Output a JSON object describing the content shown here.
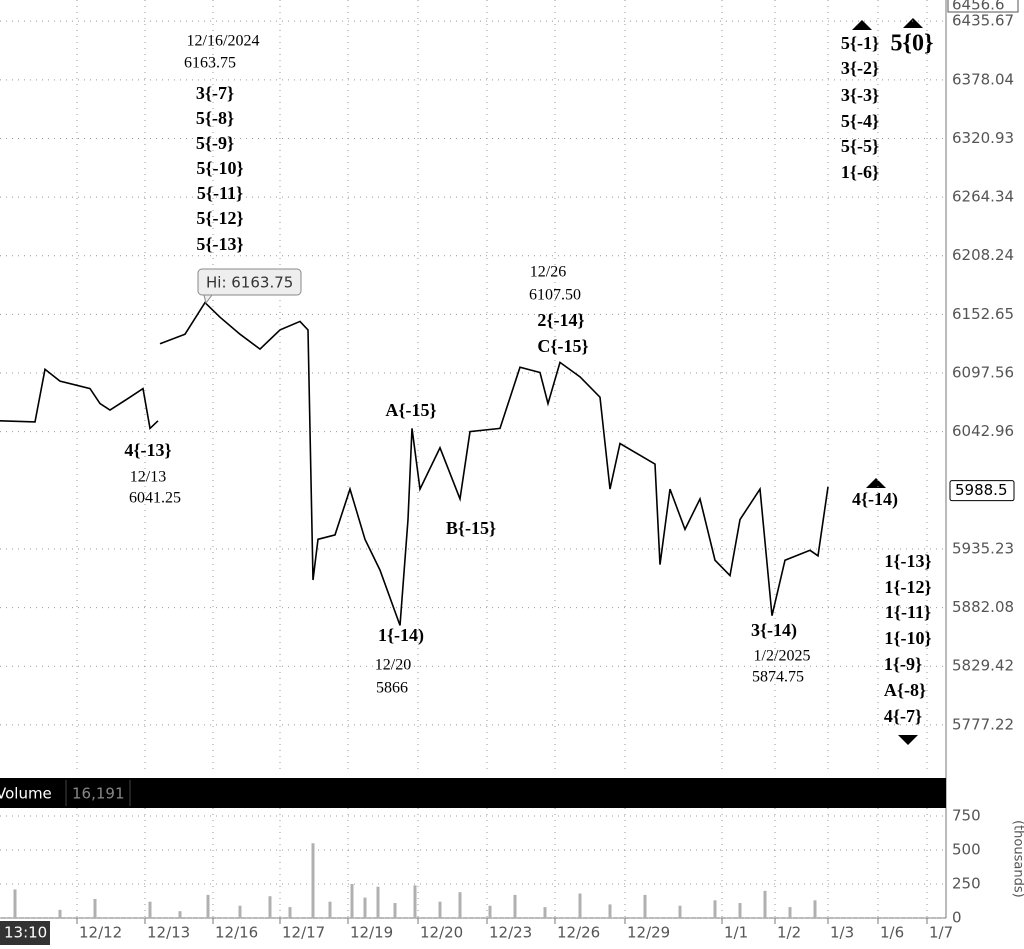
{
  "chart_data": [
    {
      "type": "line",
      "ylim": [
        5735.6,
        6456.6
      ],
      "log_scale": true,
      "yticks": [
        6435.67,
        6378.04,
        6320.93,
        6264.34,
        6208.24,
        6152.65,
        6097.56,
        6042.96,
        5935.23,
        5882.08,
        5829.42,
        5777.22
      ],
      "xlim": [
        0,
        946
      ],
      "xticks": [
        {
          "value": 77,
          "label": "12/12"
        },
        {
          "value": 145,
          "label": "12/13"
        },
        {
          "value": 213,
          "label": "12/16"
        },
        {
          "value": 280,
          "label": "12/17"
        },
        {
          "value": 348,
          "label": "12/19"
        },
        {
          "value": 418,
          "label": "12/20"
        },
        {
          "value": 487,
          "label": "12/23"
        },
        {
          "value": 555,
          "label": "12/26"
        },
        {
          "value": 625,
          "label": "12/29"
        },
        {
          "value": 722,
          "label": "1/1"
        },
        {
          "value": 775,
          "label": "1/2"
        },
        {
          "value": 828,
          "label": "1/3"
        },
        {
          "value": 878,
          "label": "1/6"
        },
        {
          "value": 927,
          "label": "1/7"
        }
      ],
      "grid": true,
      "last_price": 5988.5,
      "cursor_time": "13:10",
      "hi_label": "Hi: 6163.75",
      "series": [
        {
          "color": "#000000",
          "x": [
            0,
            35,
            45,
            60,
            90,
            100,
            110,
            130,
            143,
            150,
            158,
            159,
            160,
            185,
            205,
            220,
            240,
            260,
            280,
            300,
            308,
            313,
            318,
            335,
            350,
            365,
            380,
            400,
            408,
            412,
            420,
            440,
            460,
            470,
            500,
            520,
            540,
            548,
            560,
            580,
            600,
            610,
            620,
            655,
            660,
            670,
            685,
            700,
            715,
            730,
            740,
            760,
            772,
            785,
            810,
            818,
            828
          ],
          "values": [
            6053,
            6052,
            6101,
            6090,
            6083,
            6069,
            6063,
            6075,
            6083,
            6046,
            6053,
            null,
            6125,
            6134,
            6163.75,
            6150,
            6134,
            6120,
            6138,
            6146,
            6138,
            5907,
            5944,
            5948,
            5990,
            5944,
            5916,
            5866,
            5962,
            6046,
            5990,
            6028,
            5981,
            6043,
            6046,
            6103,
            6098,
            6069,
            6107.5,
            6094,
            6075,
            5990,
            6032,
            6013,
            5921,
            5990,
            5953,
            5981,
            5925,
            5911,
            5962,
            5990,
            5874.75,
            5925,
            5934,
            5929,
            5992
          ]
        }
      ]
    },
    {
      "type": "bar",
      "title": "Volume",
      "last_volume": "16,191",
      "y_label": "(thousands)",
      "ylim": [
        0,
        809
      ],
      "yticks": [
        0,
        250,
        500,
        750
      ],
      "series": [
        {
          "color": "#b0b0b0",
          "x": [
            15,
            60,
            95,
            150,
            180,
            208,
            240,
            270,
            290,
            313,
            330,
            352,
            365,
            378,
            395,
            415,
            440,
            460,
            490,
            515,
            545,
            580,
            610,
            645,
            680,
            715,
            740,
            765,
            790,
            815
          ],
          "values": [
            210,
            60,
            140,
            120,
            50,
            170,
            90,
            160,
            80,
            550,
            120,
            250,
            150,
            230,
            110,
            240,
            120,
            190,
            90,
            170,
            80,
            180,
            100,
            170,
            90,
            130,
            110,
            200,
            80,
            130
          ]
        }
      ]
    }
  ],
  "annotations": [
    "12/16/2024",
    "6163.75",
    "3{-7}",
    "5{-8}",
    "5{-9}",
    "5{-10}",
    "5{-11}",
    "5{-12}",
    "5{-13}",
    "4{-13}",
    "12/13",
    "6041.25",
    "12/26",
    "6107.50",
    "2{-14}",
    "C{-15}",
    "A{-15}",
    "B{-15}",
    "1{-14)",
    "12/20",
    "5866",
    "3{-14)",
    "1/2/2025",
    "5874.75",
    "5{-1}",
    "3{-2}",
    "3{-3}",
    "5{-4}",
    "5{-5}",
    "1{-6}",
    "5{0}",
    "4{-14)",
    "1{-13}",
    "1{-12}",
    "1{-11}",
    "1{-10}",
    "1{-9}",
    "A{-8}",
    "4{-7}"
  ]
}
